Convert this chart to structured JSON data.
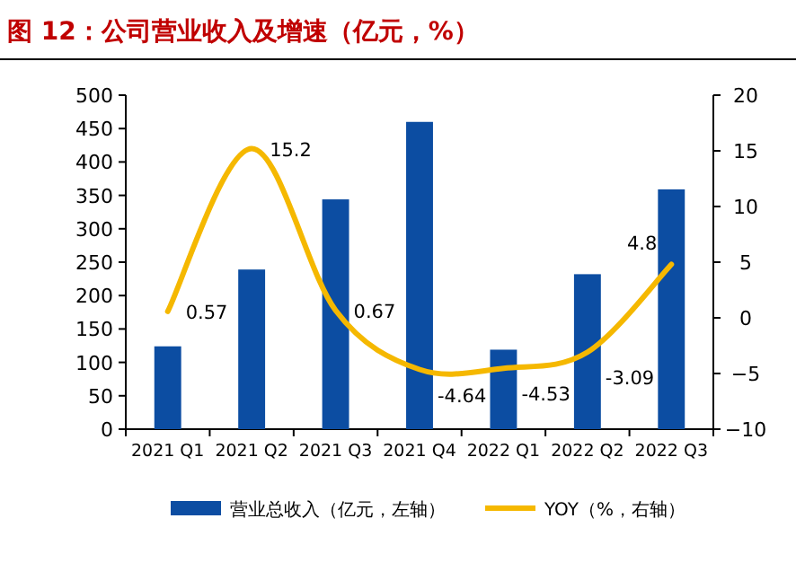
{
  "chart_data": {
    "type": "bar",
    "title": "图 12：公司营业收入及增速（亿元，%）",
    "categories": [
      "2021 Q1",
      "2021 Q2",
      "2021 Q3",
      "2021 Q4",
      "2022 Q1",
      "2022 Q2",
      "2022 Q3"
    ],
    "series": [
      {
        "name": "营业总收入（亿元，左轴）",
        "color": "#0c4da2",
        "values": [
          124,
          239,
          344,
          460,
          119,
          232,
          359
        ]
      },
      {
        "name": "YOY（%，右轴）",
        "color": "#f5b800",
        "type": "line",
        "axis": "y2",
        "values": [
          0.57,
          15.2,
          0.67,
          -4.64,
          -4.53,
          -3.09,
          4.8
        ],
        "value_labels": [
          "0.57",
          "15.2",
          "0.67",
          "-4.64",
          "-4.53",
          "-3.09",
          "4.8"
        ]
      }
    ],
    "ylim": [
      0,
      500
    ],
    "yticks": [
      0,
      50,
      100,
      150,
      200,
      250,
      300,
      350,
      400,
      450,
      500
    ],
    "y2lim": [
      -10,
      20
    ],
    "y2ticks": [
      -10,
      -5,
      0,
      5,
      10,
      15,
      20
    ],
    "legend": "bottom"
  }
}
